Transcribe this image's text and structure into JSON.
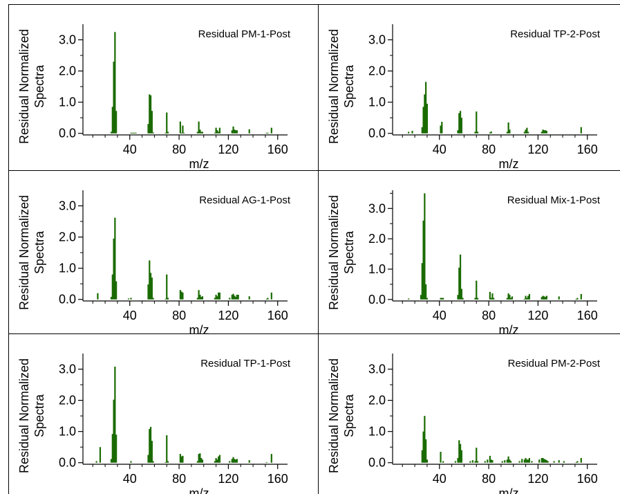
{
  "figure": {
    "bar_color": "#1a6b00",
    "axis_color": "#000000",
    "frame_color": "#000000"
  },
  "chart_data": [
    {
      "type": "bar",
      "title": "Residual PM-1-Post",
      "xlabel": "m/z",
      "ylabel": "Residual Normalized Spectra",
      "xlim": [
        2,
        168
      ],
      "ylim": [
        -0.05,
        3.5
      ],
      "xticks": [
        40,
        80,
        120,
        160
      ],
      "yticks": [
        0,
        1,
        2,
        3
      ],
      "xtick_labels": [
        "40",
        "80",
        "120",
        "160"
      ],
      "ytick_labels": [
        "0.0",
        "1.0",
        "2.0",
        "3.0"
      ],
      "grid": false,
      "x": [
        25,
        26,
        27,
        28,
        29,
        41,
        42,
        43,
        44,
        45,
        55,
        56,
        57,
        58,
        59,
        69,
        70,
        71,
        81,
        82,
        83,
        84,
        95,
        96,
        97,
        98,
        99,
        109,
        110,
        111,
        112,
        113,
        123,
        124,
        125,
        126,
        127,
        137,
        151,
        152,
        155
      ],
      "y": [
        0.05,
        0.85,
        2.3,
        3.25,
        0.72,
        0.02,
        0.02,
        0.02,
        0.02,
        0.02,
        0.3,
        1.25,
        1.22,
        0.72,
        0.03,
        0.02,
        0.67,
        0.05,
        0.38,
        0.02,
        0.25,
        0.02,
        0.05,
        0.38,
        0.12,
        0.05,
        0.05,
        0.02,
        0.18,
        0.1,
        0.05,
        0.18,
        0.1,
        0.22,
        0.12,
        0.1,
        0.1,
        0.13,
        0.02,
        0.02,
        0.18
      ]
    },
    {
      "type": "bar",
      "title": "Residual TP-2-Post",
      "xlabel": "m/z",
      "ylabel": "Residual Normalized Spectra",
      "xlim": [
        2,
        168
      ],
      "ylim": [
        -0.05,
        3.5
      ],
      "xticks": [
        40,
        80,
        120,
        160
      ],
      "yticks": [
        0,
        1,
        2,
        3
      ],
      "xtick_labels": [
        "40",
        "80",
        "120",
        "160"
      ],
      "ytick_labels": [
        "0.0",
        "1.0",
        "2.0",
        "3.0"
      ],
      "grid": false,
      "x": [
        15,
        18,
        26,
        27,
        28,
        29,
        30,
        41,
        42,
        55,
        56,
        57,
        58,
        69,
        70,
        71,
        81,
        82,
        95,
        96,
        97,
        109,
        110,
        111,
        112,
        123,
        124,
        125,
        126,
        127,
        155
      ],
      "y": [
        0.05,
        0.08,
        0.2,
        0.85,
        1.25,
        1.65,
        0.95,
        0.25,
        0.37,
        0.1,
        0.65,
        0.72,
        0.5,
        0.05,
        0.7,
        0.05,
        0.03,
        0.06,
        0.05,
        0.35,
        0.12,
        0.05,
        0.12,
        0.18,
        0.05,
        0.05,
        0.12,
        0.1,
        0.1,
        0.08,
        0.2
      ]
    },
    {
      "type": "bar",
      "title": "Residual AG-1-Post",
      "xlabel": "m/z",
      "ylabel": "Residual Normalized Spectra",
      "xlim": [
        2,
        168
      ],
      "ylim": [
        -0.05,
        3.5
      ],
      "xticks": [
        40,
        80,
        120,
        160
      ],
      "yticks": [
        0,
        1,
        2,
        3
      ],
      "xtick_labels": [
        "40",
        "80",
        "120",
        "160"
      ],
      "ytick_labels": [
        "0.0",
        "1.0",
        "2.0",
        "3.0"
      ],
      "grid": false,
      "x": [
        14,
        25,
        26,
        27,
        28,
        29,
        39,
        41,
        55,
        56,
        57,
        58,
        59,
        69,
        70,
        71,
        81,
        82,
        83,
        95,
        96,
        97,
        98,
        99,
        109,
        110,
        111,
        112,
        113,
        121,
        123,
        124,
        125,
        126,
        127,
        128,
        137,
        151,
        152,
        155
      ],
      "y": [
        0.2,
        0.08,
        0.8,
        1.95,
        2.62,
        0.58,
        0.03,
        0.05,
        0.48,
        1.25,
        0.85,
        0.7,
        0.05,
        0.02,
        0.8,
        0.05,
        0.3,
        0.25,
        0.22,
        0.05,
        0.3,
        0.15,
        0.08,
        0.1,
        0.05,
        0.15,
        0.1,
        0.22,
        0.22,
        0.05,
        0.15,
        0.18,
        0.12,
        0.08,
        0.15,
        0.15,
        0.1,
        0.02,
        0.05,
        0.22
      ]
    },
    {
      "type": "bar",
      "title": "Residual Mix-1-Post",
      "xlabel": "m/z",
      "ylabel": "Residual Normalized Spectra",
      "xlim": [
        2,
        168
      ],
      "ylim": [
        -0.05,
        3.6
      ],
      "xticks": [
        40,
        80,
        120,
        160
      ],
      "yticks": [
        0,
        1,
        2,
        3
      ],
      "xtick_labels": [
        "40",
        "80",
        "120",
        "160"
      ],
      "ytick_labels": [
        "0.0",
        "1.0",
        "2.0",
        "3.0"
      ],
      "grid": false,
      "x": [
        15,
        25,
        26,
        27,
        28,
        29,
        30,
        41,
        42,
        43,
        55,
        56,
        57,
        58,
        59,
        69,
        70,
        71,
        81,
        82,
        83,
        84,
        95,
        96,
        97,
        98,
        99,
        109,
        110,
        111,
        112,
        113,
        123,
        124,
        125,
        126,
        127,
        137,
        151,
        152,
        155
      ],
      "y": [
        0.03,
        0.15,
        1.2,
        2.6,
        3.5,
        0.5,
        0.05,
        0.05,
        0.05,
        0.05,
        0.15,
        1.05,
        1.48,
        0.35,
        0.05,
        0.05,
        0.62,
        0.05,
        0.25,
        0.05,
        0.2,
        0.05,
        0.05,
        0.2,
        0.15,
        0.05,
        0.1,
        0.02,
        0.12,
        0.05,
        0.12,
        0.18,
        0.08,
        0.12,
        0.1,
        0.08,
        0.12,
        0.1,
        0.02,
        0.05,
        0.18
      ]
    },
    {
      "type": "bar",
      "title": "Residual TP-1-Post",
      "xlabel": "m/z",
      "ylabel": "Residual Normalized Spectra",
      "xlim": [
        2,
        168
      ],
      "ylim": [
        -0.05,
        3.5
      ],
      "xticks": [
        40,
        80,
        120,
        160
      ],
      "yticks": [
        0,
        1,
        2,
        3
      ],
      "xtick_labels": [
        "40",
        "80",
        "120",
        "160"
      ],
      "ytick_labels": [
        "0.0",
        "1.0",
        "2.0",
        "3.0"
      ],
      "grid": false,
      "x": [
        13,
        16,
        25,
        26,
        27,
        28,
        29,
        41,
        55,
        56,
        57,
        58,
        59,
        69,
        70,
        71,
        81,
        82,
        83,
        95,
        96,
        97,
        98,
        99,
        109,
        110,
        111,
        112,
        113,
        121,
        123,
        124,
        125,
        126,
        127,
        137,
        151,
        155
      ],
      "y": [
        0.05,
        0.5,
        0.12,
        0.92,
        2.02,
        3.08,
        0.9,
        0.05,
        0.25,
        1.08,
        1.15,
        0.7,
        0.05,
        0.02,
        0.88,
        0.05,
        0.28,
        0.2,
        0.22,
        0.05,
        0.28,
        0.3,
        0.15,
        0.1,
        0.05,
        0.15,
        0.1,
        0.2,
        0.25,
        0.05,
        0.12,
        0.18,
        0.12,
        0.1,
        0.12,
        0.08,
        0.02,
        0.28
      ]
    },
    {
      "type": "bar",
      "title": "Residual PM-2-Post",
      "xlabel": "m/z",
      "ylabel": "Residual Normalized Spectra",
      "xlim": [
        2,
        168
      ],
      "ylim": [
        -0.05,
        3.5
      ],
      "xticks": [
        40,
        80,
        120,
        160
      ],
      "yticks": [
        0,
        1,
        2,
        3
      ],
      "xtick_labels": [
        "40",
        "80",
        "120",
        "160"
      ],
      "ytick_labels": [
        "0.0",
        "1.0",
        "2.0",
        "3.0"
      ],
      "grid": false,
      "x": [
        26,
        27,
        28,
        29,
        30,
        41,
        43,
        53,
        55,
        56,
        57,
        58,
        65,
        67,
        69,
        70,
        71,
        77,
        79,
        81,
        82,
        83,
        91,
        93,
        95,
        96,
        97,
        98,
        105,
        107,
        109,
        110,
        111,
        112,
        113,
        115,
        121,
        123,
        124,
        125,
        126,
        127,
        128,
        133,
        137,
        141,
        151,
        152,
        155
      ],
      "y": [
        0.4,
        1.0,
        1.5,
        0.75,
        0.1,
        0.35,
        0.05,
        0.05,
        0.15,
        0.72,
        0.6,
        0.4,
        0.05,
        0.08,
        0.05,
        0.48,
        0.05,
        0.05,
        0.1,
        0.22,
        0.1,
        0.08,
        0.05,
        0.08,
        0.1,
        0.2,
        0.1,
        0.05,
        0.05,
        0.12,
        0.1,
        0.15,
        0.1,
        0.1,
        0.15,
        0.05,
        0.1,
        0.15,
        0.15,
        0.12,
        0.1,
        0.08,
        0.05,
        0.05,
        0.08,
        0.05,
        0.02,
        0.05,
        0.15
      ]
    }
  ]
}
